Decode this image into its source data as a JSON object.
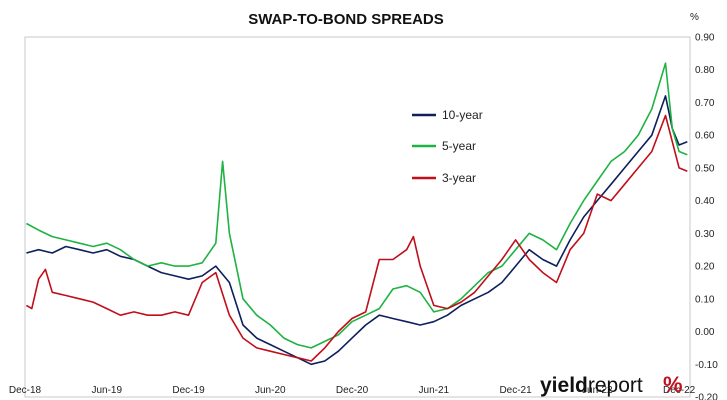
{
  "chart_data": {
    "type": "line",
    "title": "SWAP-TO-BOND SPREADS",
    "y_unit": "%",
    "ylim": [
      -0.2,
      0.9
    ],
    "y_ticks": [
      "0.90",
      "0.80",
      "0.70",
      "0.60",
      "0.50",
      "0.40",
      "0.30",
      "0.20",
      "0.10",
      "0.00",
      "-0.10",
      "-0.20"
    ],
    "y_tick_values": [
      0.9,
      0.8,
      0.7,
      0.6,
      0.5,
      0.4,
      0.3,
      0.2,
      0.1,
      0.0,
      -0.1,
      -0.2
    ],
    "x_ticks": [
      "Dec-18",
      "Jun-19",
      "Dec-19",
      "Jun-20",
      "Dec-20",
      "Jun-21",
      "Dec-21",
      "Jun-22",
      "Dec-22"
    ],
    "x_tick_months": [
      0,
      6,
      12,
      18,
      24,
      30,
      36,
      42,
      48
    ],
    "xlim_months": [
      0,
      48.8
    ],
    "grid": false,
    "legend_position": "center-right",
    "series": [
      {
        "name": "10-year",
        "color": "#0d1f5c",
        "points": [
          [
            0.1,
            0.24
          ],
          [
            1,
            0.25
          ],
          [
            2,
            0.24
          ],
          [
            3,
            0.26
          ],
          [
            4,
            0.25
          ],
          [
            5,
            0.24
          ],
          [
            6,
            0.25
          ],
          [
            7,
            0.23
          ],
          [
            8,
            0.22
          ],
          [
            9,
            0.2
          ],
          [
            10,
            0.18
          ],
          [
            11,
            0.17
          ],
          [
            12,
            0.16
          ],
          [
            13,
            0.17
          ],
          [
            14,
            0.2
          ],
          [
            15,
            0.15
          ],
          [
            16,
            0.02
          ],
          [
            17,
            -0.02
          ],
          [
            18,
            -0.04
          ],
          [
            19,
            -0.06
          ],
          [
            20,
            -0.08
          ],
          [
            21,
            -0.1
          ],
          [
            22,
            -0.09
          ],
          [
            23,
            -0.06
          ],
          [
            24,
            -0.02
          ],
          [
            25,
            0.02
          ],
          [
            26,
            0.05
          ],
          [
            27,
            0.04
          ],
          [
            28,
            0.03
          ],
          [
            29,
            0.02
          ],
          [
            30,
            0.03
          ],
          [
            31,
            0.05
          ],
          [
            32,
            0.08
          ],
          [
            33,
            0.1
          ],
          [
            34,
            0.12
          ],
          [
            35,
            0.15
          ],
          [
            36,
            0.2
          ],
          [
            37,
            0.25
          ],
          [
            38,
            0.22
          ],
          [
            39,
            0.2
          ],
          [
            40,
            0.28
          ],
          [
            41,
            0.35
          ],
          [
            42,
            0.4
          ],
          [
            43,
            0.45
          ],
          [
            44,
            0.5
          ],
          [
            45,
            0.55
          ],
          [
            46,
            0.6
          ],
          [
            47,
            0.72
          ],
          [
            47.5,
            0.62
          ],
          [
            48,
            0.57
          ],
          [
            48.6,
            0.58
          ]
        ]
      },
      {
        "name": "5-year",
        "color": "#1eb343",
        "points": [
          [
            0.1,
            0.33
          ],
          [
            1,
            0.31
          ],
          [
            2,
            0.29
          ],
          [
            3,
            0.28
          ],
          [
            4,
            0.27
          ],
          [
            5,
            0.26
          ],
          [
            6,
            0.27
          ],
          [
            7,
            0.25
          ],
          [
            8,
            0.22
          ],
          [
            9,
            0.2
          ],
          [
            10,
            0.21
          ],
          [
            11,
            0.2
          ],
          [
            12,
            0.2
          ],
          [
            13,
            0.21
          ],
          [
            14,
            0.27
          ],
          [
            14.5,
            0.52
          ],
          [
            15,
            0.3
          ],
          [
            16,
            0.1
          ],
          [
            17,
            0.05
          ],
          [
            18,
            0.02
          ],
          [
            19,
            -0.02
          ],
          [
            20,
            -0.04
          ],
          [
            21,
            -0.05
          ],
          [
            22,
            -0.03
          ],
          [
            23,
            -0.01
          ],
          [
            24,
            0.03
          ],
          [
            25,
            0.05
          ],
          [
            26,
            0.07
          ],
          [
            27,
            0.13
          ],
          [
            28,
            0.14
          ],
          [
            29,
            0.12
          ],
          [
            30,
            0.06
          ],
          [
            31,
            0.07
          ],
          [
            32,
            0.1
          ],
          [
            33,
            0.14
          ],
          [
            34,
            0.18
          ],
          [
            35,
            0.2
          ],
          [
            36,
            0.25
          ],
          [
            37,
            0.3
          ],
          [
            38,
            0.28
          ],
          [
            39,
            0.25
          ],
          [
            40,
            0.33
          ],
          [
            41,
            0.4
          ],
          [
            42,
            0.46
          ],
          [
            43,
            0.52
          ],
          [
            44,
            0.55
          ],
          [
            45,
            0.6
          ],
          [
            46,
            0.68
          ],
          [
            47,
            0.82
          ],
          [
            47.5,
            0.62
          ],
          [
            48,
            0.55
          ],
          [
            48.6,
            0.54
          ]
        ]
      },
      {
        "name": "3-year",
        "color": "#c00e1a",
        "points": [
          [
            0.1,
            0.08
          ],
          [
            0.5,
            0.07
          ],
          [
            1,
            0.16
          ],
          [
            1.5,
            0.19
          ],
          [
            2,
            0.12
          ],
          [
            3,
            0.11
          ],
          [
            4,
            0.1
          ],
          [
            5,
            0.09
          ],
          [
            6,
            0.07
          ],
          [
            7,
            0.05
          ],
          [
            8,
            0.06
          ],
          [
            9,
            0.05
          ],
          [
            10,
            0.05
          ],
          [
            11,
            0.06
          ],
          [
            12,
            0.05
          ],
          [
            13,
            0.15
          ],
          [
            14,
            0.18
          ],
          [
            15,
            0.05
          ],
          [
            16,
            -0.02
          ],
          [
            17,
            -0.05
          ],
          [
            18,
            -0.06
          ],
          [
            19,
            -0.07
          ],
          [
            20,
            -0.08
          ],
          [
            21,
            -0.09
          ],
          [
            22,
            -0.05
          ],
          [
            23,
            0.0
          ],
          [
            24,
            0.04
          ],
          [
            25,
            0.06
          ],
          [
            26,
            0.22
          ],
          [
            27,
            0.22
          ],
          [
            28,
            0.25
          ],
          [
            28.5,
            0.29
          ],
          [
            29,
            0.2
          ],
          [
            30,
            0.08
          ],
          [
            31,
            0.07
          ],
          [
            32,
            0.09
          ],
          [
            33,
            0.12
          ],
          [
            34,
            0.17
          ],
          [
            35,
            0.22
          ],
          [
            36,
            0.28
          ],
          [
            37,
            0.22
          ],
          [
            38,
            0.18
          ],
          [
            39,
            0.15
          ],
          [
            40,
            0.25
          ],
          [
            41,
            0.3
          ],
          [
            42,
            0.42
          ],
          [
            43,
            0.4
          ],
          [
            44,
            0.45
          ],
          [
            45,
            0.5
          ],
          [
            46,
            0.55
          ],
          [
            47,
            0.66
          ],
          [
            47.5,
            0.58
          ],
          [
            48,
            0.5
          ],
          [
            48.6,
            0.49
          ]
        ]
      }
    ]
  },
  "branding": {
    "part1": "yield",
    "part2": "report",
    "symbol": "%"
  }
}
